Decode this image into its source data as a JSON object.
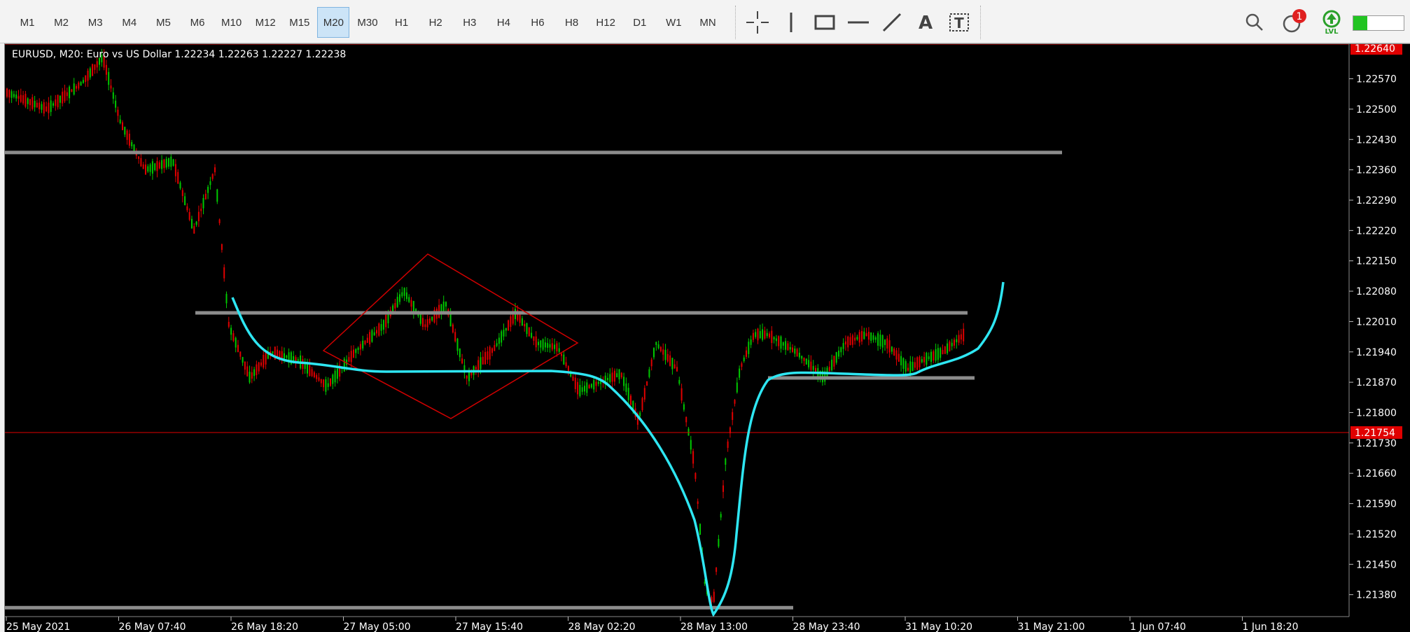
{
  "toolbar": {
    "timeframes": [
      "M1",
      "M2",
      "M3",
      "M4",
      "M5",
      "M6",
      "M10",
      "M12",
      "M15",
      "M20",
      "M30",
      "H1",
      "H2",
      "H3",
      "H4",
      "H6",
      "H8",
      "H12",
      "D1",
      "W1",
      "MN"
    ],
    "active_timeframe": "M20",
    "notification_count": "1",
    "level_label": "LVL"
  },
  "chart": {
    "symbol_info": "EURUSD, M20:  Euro vs US Dollar  1.22234 1.22263 1.22227 1.22238",
    "price_labels": [
      "1.22570",
      "1.22500",
      "1.22430",
      "1.22360",
      "1.22290",
      "1.22220",
      "1.22150",
      "1.22080",
      "1.22010",
      "1.21940",
      "1.21870",
      "1.21800",
      "1.21730",
      "1.21660",
      "1.21590",
      "1.21520",
      "1.21450",
      "1.21380"
    ],
    "highlight_prices": {
      "top": "1.22640",
      "current": "1.21754"
    },
    "time_labels": [
      "25 May 2021",
      "26 May 07:40",
      "26 May 18:20",
      "27 May 05:00",
      "27 May 15:40",
      "28 May 02:20",
      "28 May 13:00",
      "28 May 23:40",
      "31 May 10:20",
      "31 May 21:00",
      "1 Jun 07:40",
      "1 Jun 18:20"
    ],
    "colors": {
      "background": "#000000",
      "bull": "#00c800",
      "bear": "#e00000",
      "level_line": "#8c8c8c",
      "curve": "#2ee6f2",
      "price_line": "#e00000",
      "highlight_bg": "#e00000"
    }
  },
  "chart_data": {
    "type": "candlestick",
    "symbol": "EURUSD",
    "timeframe": "M20",
    "ylim": [
      1.2131,
      1.2265
    ],
    "horizontal_levels": [
      1.224,
      1.2203,
      1.2188,
      1.2135
    ],
    "current_price": 1.21754,
    "top_price_marker": 1.2264,
    "diamond_pattern": [
      [
        1.2195,
        "27 May 00:00"
      ],
      [
        1.2216,
        "27 May 11:00"
      ],
      [
        1.2195,
        "27 May 22:00"
      ],
      [
        1.2178,
        "27 May 11:00"
      ]
    ],
    "cyan_curve_description": "cup-shaped arc from 26 May 18:20 to 31 May 17:00 with deep dip near 28 May 13:00"
  }
}
